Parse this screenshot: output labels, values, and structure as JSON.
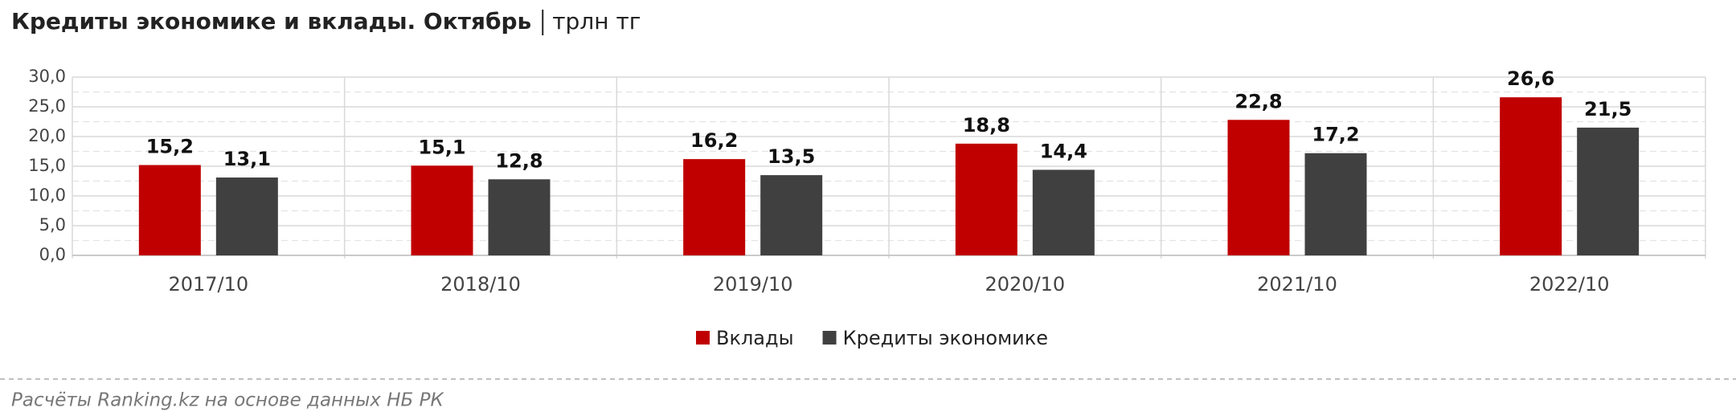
{
  "chart_data": {
    "type": "bar",
    "title": "Кредиты экономике и вклады. Октябрь",
    "subtitle": "трлн тг",
    "source": "Расчёты Ranking.kz на основе данных НБ РК",
    "categories": [
      "2017/10",
      "2018/10",
      "2019/10",
      "2020/10",
      "2021/10",
      "2022/10"
    ],
    "series": [
      {
        "name": "Вклады",
        "color": "#c00000",
        "values": [
          15.2,
          15.1,
          16.2,
          18.8,
          22.8,
          26.6
        ],
        "value_labels": [
          "15,2",
          "15,1",
          "16,2",
          "18,8",
          "22,8",
          "26,6"
        ]
      },
      {
        "name": "Кредиты экономике",
        "color": "#404040",
        "values": [
          13.1,
          12.8,
          13.5,
          14.4,
          17.2,
          21.5
        ],
        "value_labels": [
          "13,1",
          "12,8",
          "13,5",
          "14,4",
          "17,2",
          "21,5"
        ]
      }
    ],
    "ylim": [
      0,
      30
    ],
    "yticks": [
      {
        "value": 0,
        "label": "0,0"
      },
      {
        "value": 5,
        "label": "5,0"
      },
      {
        "value": 10,
        "label": "10,0"
      },
      {
        "value": 15,
        "label": "15,0"
      },
      {
        "value": 20,
        "label": "20,0"
      },
      {
        "value": 25,
        "label": "25,0"
      },
      {
        "value": 30,
        "label": "30,0"
      }
    ],
    "grid": true,
    "legend": "bottom"
  }
}
